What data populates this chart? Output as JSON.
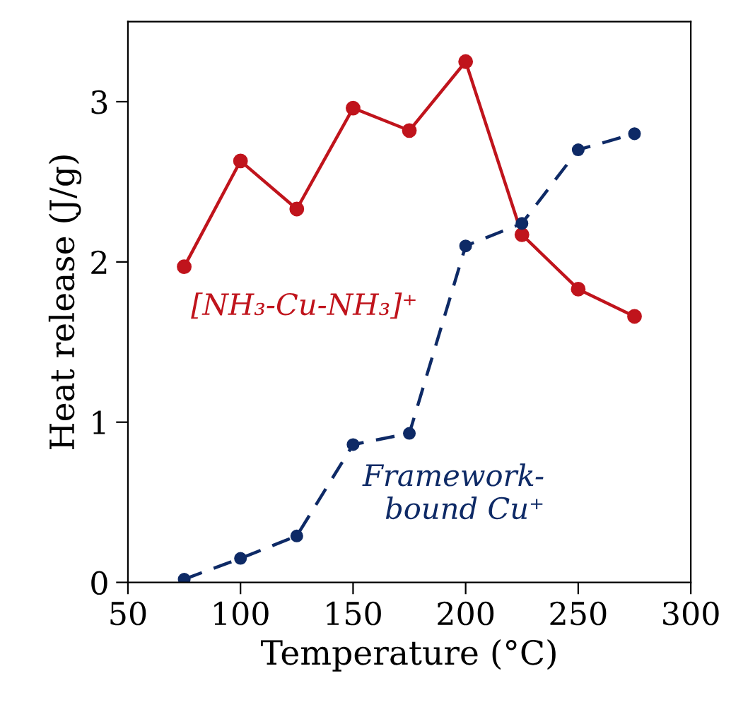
{
  "chart_data": {
    "type": "line",
    "xlabel": "Temperature (°C)",
    "ylabel": "Heat release (J/g)",
    "x": [
      75,
      100,
      125,
      150,
      175,
      200,
      225,
      250,
      275
    ],
    "series": [
      {
        "name": "[NH₃-Cu-NH₃]⁺",
        "color": "#c0141c",
        "line_style": "solid",
        "values": [
          1.97,
          2.63,
          2.33,
          2.96,
          2.82,
          3.25,
          2.17,
          1.83,
          1.66
        ]
      },
      {
        "name": "Framework-\nbound Cu⁺",
        "color": "#0e2a66",
        "line_style": "dashed",
        "values": [
          0.02,
          0.15,
          0.29,
          0.86,
          0.93,
          2.1,
          2.24,
          2.7,
          2.8
        ]
      }
    ],
    "xlim": [
      50,
      300
    ],
    "xticks": [
      50,
      100,
      150,
      200,
      250,
      300
    ],
    "ylim": [
      0,
      3.5
    ],
    "yticks": [
      0,
      1,
      2,
      3
    ],
    "marker": "circle",
    "grid": false,
    "legend": false
  }
}
